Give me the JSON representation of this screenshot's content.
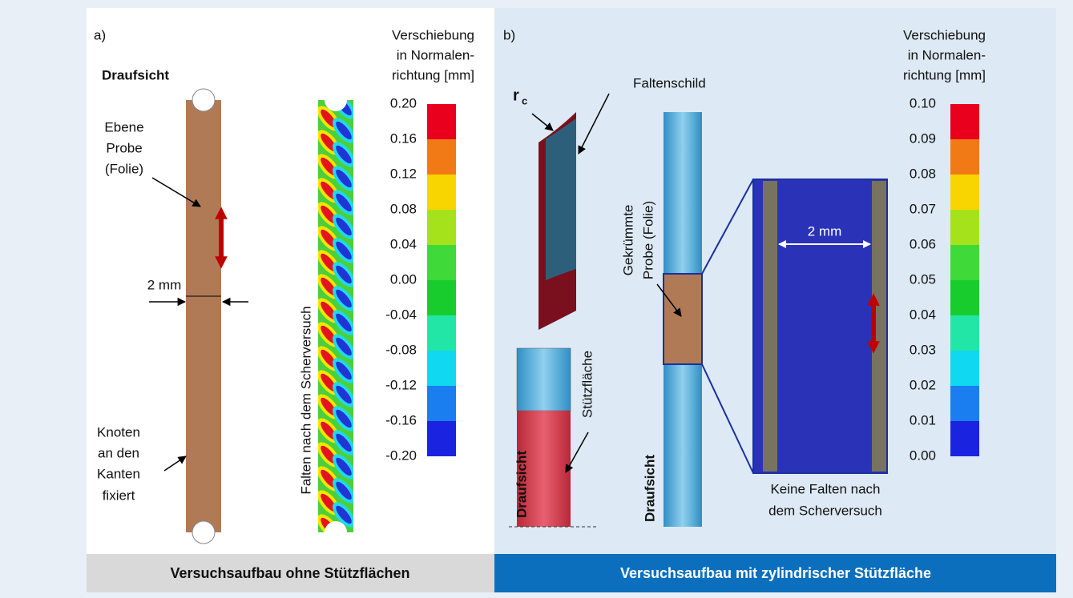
{
  "panels": [
    {
      "label": "a)",
      "legend_title": [
        "Verschiebung",
        "in Normalen-",
        "richtung [mm]"
      ],
      "view_label": "Draufsicht",
      "sample_label": [
        "Ebene",
        "Probe",
        "(Folie)"
      ],
      "width_label": "2 mm",
      "fixed_label": [
        "Knoten",
        "an den",
        "Kanten",
        "fixiert"
      ],
      "wrinkle_label": "Falten nach dem Scherversuch",
      "colorbar_ticks": [
        "0.20",
        "0.16",
        "0.12",
        "0.08",
        "0.04",
        "0.00",
        "-0.04",
        "-0.08",
        "-0.12",
        "-0.16",
        "-0.20"
      ],
      "caption": "Versuchsaufbau ohne Stützflächen"
    },
    {
      "label": "b)",
      "legend_title": [
        "Verschiebung",
        "in Normalen-",
        "richtung [mm]"
      ],
      "shield_label": "Faltenschild",
      "radius_label": "r",
      "radius_subscript": "c",
      "support_label": "Stützfläche",
      "view_labels": [
        "Draufsicht",
        "Draufsicht"
      ],
      "sample_label": [
        "Gekrümmte",
        "Probe (Folie)"
      ],
      "width_label": "2 mm",
      "result_label": [
        "Keine Falten nach",
        "dem Scherversuch"
      ],
      "colorbar_ticks": [
        "0.10",
        "0.09",
        "0.08",
        "0.07",
        "0.06",
        "0.05",
        "0.04",
        "0.03",
        "0.02",
        "0.01",
        "0.00"
      ],
      "caption": "Versuchsaufbau mit zylindrischer Stützfläche"
    }
  ]
}
